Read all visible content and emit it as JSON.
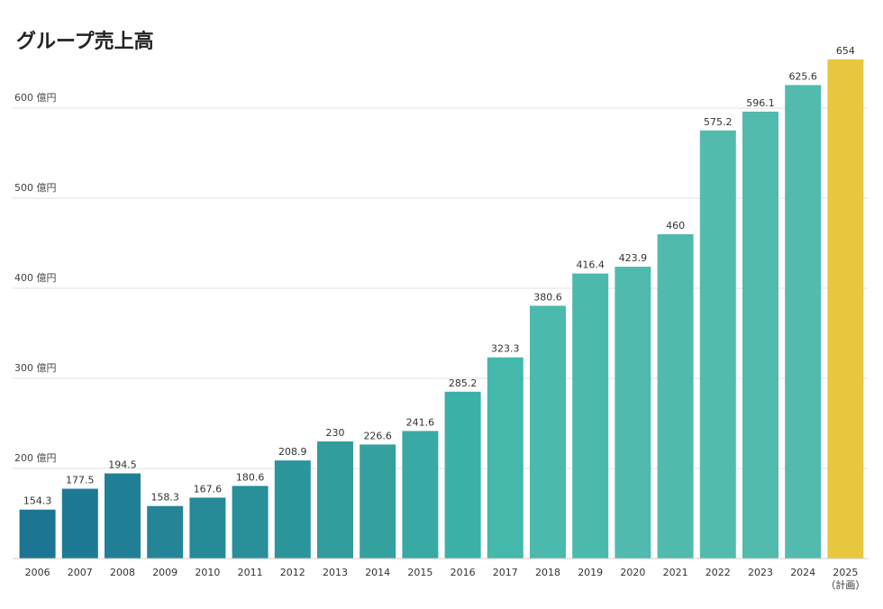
{
  "chart_data": {
    "type": "bar",
    "title": "グループ売上高",
    "categories": [
      "2006",
      "2007",
      "2008",
      "2009",
      "2010",
      "2011",
      "2012",
      "2013",
      "2014",
      "2015",
      "2016",
      "2017",
      "2018",
      "2019",
      "2020",
      "2021",
      "2022",
      "2023",
      "2024",
      "2025"
    ],
    "category_notes": {
      "2025": "（計画）"
    },
    "values": [
      154.3,
      177.5,
      194.5,
      158.3,
      167.6,
      180.6,
      208.9,
      230,
      226.6,
      241.6,
      285.2,
      323.3,
      380.6,
      416.4,
      423.9,
      460,
      575.2,
      596.1,
      625.6,
      654
    ],
    "value_labels": [
      "154.3",
      "177.5",
      "194.5",
      "158.3",
      "167.6",
      "180.6",
      "208.9",
      "230",
      "226.6",
      "241.6",
      "285.2",
      "323.3",
      "380.6",
      "416.4",
      "423.9",
      "460",
      "575.2",
      "596.1",
      "625.6",
      "654"
    ],
    "ylim": [
      100,
      660
    ],
    "yticks": [
      200,
      300,
      400,
      500,
      600
    ],
    "ytick_labels": [
      "200 億円",
      "300 億円",
      "400 億円",
      "500 億円",
      "600 億円"
    ],
    "grid": true,
    "highlight_color": "#e6c73e",
    "bar_colors": [
      "#1c7493",
      "#1e7a94",
      "#217f95",
      "#248597",
      "#268a98",
      "#298f99",
      "#2c959b",
      "#339c9d",
      "#35a19f",
      "#39a9a4",
      "#3cb1a8",
      "#44b8ab",
      "#4bb9ad",
      "#4cb9ad",
      "#4fbaad",
      "#50baad",
      "#52bbae",
      "#52bbae",
      "#52bbae",
      "#e6c73e"
    ],
    "xlabel": "",
    "ylabel": ""
  }
}
